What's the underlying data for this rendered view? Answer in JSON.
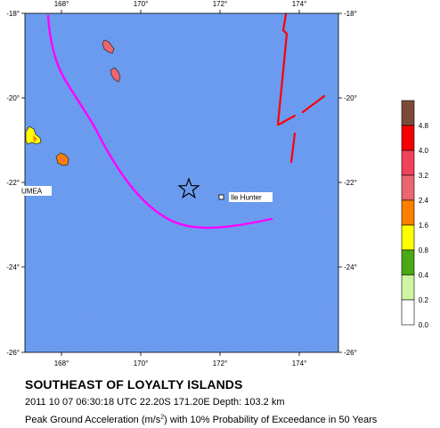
{
  "map": {
    "ocean_color": "#6b9cf0",
    "lon_ticks": [
      "168°",
      "170°",
      "172°",
      "174°"
    ],
    "lat_ticks": [
      "-18°",
      "-20°",
      "-22°",
      "-24°",
      "-26°"
    ],
    "places": [
      {
        "name": "UMEA"
      },
      {
        "name": "Ile Hunter"
      }
    ],
    "epicenter_symbol": "star-icon",
    "trench_color": "#ff00ff",
    "fault_color": "#ff0000"
  },
  "legend": {
    "levels": [
      {
        "label": "",
        "color": "#7d4a3a"
      },
      {
        "label": "4.8",
        "color": "#f40000"
      },
      {
        "label": "4.0",
        "color": "#f0425a"
      },
      {
        "label": "3.2",
        "color": "#ec6670"
      },
      {
        "label": "2.4",
        "color": "#ff7f00"
      },
      {
        "label": "1.6",
        "color": "#ffff00"
      },
      {
        "label": "0.8",
        "color": "#4aaa14"
      },
      {
        "label": "0.4",
        "color": "#cff5a2"
      },
      {
        "label": "0.2",
        "color": "#ffffff"
      },
      {
        "label": "0.0",
        "color": ""
      }
    ]
  },
  "caption": {
    "title": "SOUTHEAST OF LOYALTY ISLANDS",
    "info": "2011 10 07 06:30:18 UTC 22.20S 171.20E Depth: 103.2 km",
    "pga_prefix": "Peak Ground Acceleration (m/s",
    "pga_sup": "2",
    "pga_suffix": ") with 10% Probability of Exceedance in 50 Years"
  }
}
